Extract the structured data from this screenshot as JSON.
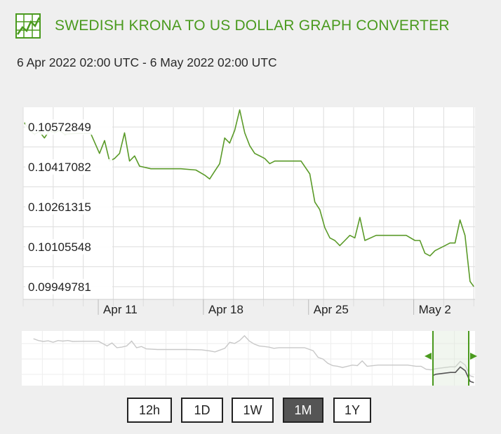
{
  "header": {
    "title": "SWEDISH KRONA TO US DOLLAR GRAPH CONVERTER",
    "date_range": "6 Apr 2022 02:00 UTC - 6 May 2022 02:00 UTC"
  },
  "colors": {
    "accent": "#4a9a1e",
    "line": "#5a9a28",
    "nav_line": "#c8c8c8",
    "nav_selected_line": "#555555"
  },
  "range_buttons": [
    {
      "label": "12h",
      "active": false
    },
    {
      "label": "1D",
      "active": false
    },
    {
      "label": "1W",
      "active": false
    },
    {
      "label": "1M",
      "active": true
    },
    {
      "label": "1Y",
      "active": false
    }
  ],
  "chart_data": {
    "type": "line",
    "x_range": [
      "2022-04-06",
      "2022-05-06"
    ],
    "x_ticks": [
      {
        "date": "2022-04-11",
        "label": "Apr 11"
      },
      {
        "date": "2022-04-18",
        "label": "Apr 18"
      },
      {
        "date": "2022-04-25",
        "label": "Apr 25"
      },
      {
        "date": "2022-05-02",
        "label": "May 2"
      }
    ],
    "y_ticks": [
      0.10572849,
      0.10417082,
      0.10261315,
      0.10105548,
      0.09949781
    ],
    "y_tick_labels": [
      "0.10572849",
      "0.10417082",
      "0.10261315",
      "0.10105548",
      "0.09949781"
    ],
    "ylim": [
      0.099,
      0.1065
    ],
    "grid": true,
    "series": [
      {
        "x": [
          "2022-04-06",
          "2022-04-06",
          "2022-04-06",
          "2022-04-07",
          "2022-04-07",
          "2022-04-07",
          "2022-04-08",
          "2022-04-08",
          "2022-04-08",
          "2022-04-09",
          "2022-04-10",
          "2022-04-11",
          "2022-04-11",
          "2022-04-11",
          "2022-04-12",
          "2022-04-12",
          "2022-04-12",
          "2022-04-13",
          "2022-04-13",
          "2022-04-13",
          "2022-04-14",
          "2022-04-15",
          "2022-04-16",
          "2022-04-17",
          "2022-04-18",
          "2022-04-18",
          "2022-04-18",
          "2022-04-19",
          "2022-04-19",
          "2022-04-19",
          "2022-04-20",
          "2022-04-20",
          "2022-04-20",
          "2022-04-21",
          "2022-04-21",
          "2022-04-21",
          "2022-04-22",
          "2022-04-22",
          "2022-04-22",
          "2022-04-23",
          "2022-04-24",
          "2022-04-25",
          "2022-04-25",
          "2022-04-25",
          "2022-04-26",
          "2022-04-26",
          "2022-04-26",
          "2022-04-27",
          "2022-04-27",
          "2022-04-27",
          "2022-04-28",
          "2022-04-28",
          "2022-04-28",
          "2022-04-29",
          "2022-04-30",
          "2022-05-01",
          "2022-05-02",
          "2022-05-02",
          "2022-05-02",
          "2022-05-03",
          "2022-05-03",
          "2022-05-03",
          "2022-05-04",
          "2022-05-04",
          "2022-05-04",
          "2022-05-05",
          "2022-05-05",
          "2022-05-05",
          "2022-05-06"
        ],
        "hour": [
          2,
          10,
          18,
          2,
          10,
          18,
          2,
          10,
          18,
          12,
          12,
          2,
          10,
          18,
          2,
          10,
          18,
          2,
          10,
          18,
          12,
          12,
          12,
          12,
          2,
          10,
          18,
          2,
          10,
          18,
          2,
          10,
          18,
          2,
          10,
          18,
          2,
          10,
          18,
          12,
          12,
          2,
          10,
          18,
          2,
          10,
          18,
          2,
          10,
          18,
          2,
          10,
          18,
          12,
          12,
          12,
          2,
          10,
          18,
          2,
          10,
          18,
          2,
          10,
          18,
          2,
          10,
          18,
          0
        ],
        "y": [
          0.1059,
          0.1056,
          0.10545,
          0.10555,
          0.1053,
          0.1056,
          0.1055,
          0.1056,
          0.10545,
          0.10548,
          0.10548,
          0.1047,
          0.1052,
          0.1044,
          0.1045,
          0.1047,
          0.1055,
          0.1044,
          0.1046,
          0.1042,
          0.1041,
          0.1041,
          0.1041,
          0.10405,
          0.10385,
          0.1037,
          0.104,
          0.1043,
          0.1053,
          0.1051,
          0.1056,
          0.1064,
          0.1055,
          0.105,
          0.1047,
          0.1046,
          0.1045,
          0.1043,
          0.1044,
          0.1044,
          0.1044,
          0.1039,
          0.1028,
          0.1025,
          0.1018,
          0.1014,
          0.1013,
          0.1011,
          0.1013,
          0.1015,
          0.1014,
          0.1022,
          0.1013,
          0.1015,
          0.1015,
          0.1015,
          0.1013,
          0.1013,
          0.1008,
          0.1007,
          0.1009,
          0.101,
          0.1011,
          0.1012,
          0.1012,
          0.1021,
          0.1015,
          0.0997,
          0.0995
        ]
      }
    ]
  }
}
